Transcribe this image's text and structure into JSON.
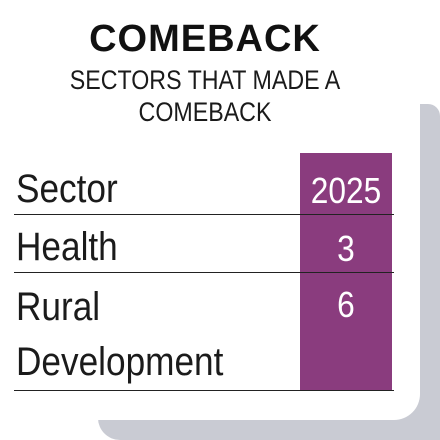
{
  "title": "COMEBACK",
  "subtitle": "SECTORS THAT MADE A COMEBACK",
  "chart_data": {
    "type": "table",
    "columns": [
      "Sector",
      "2025"
    ],
    "rows": [
      {
        "sector": "Health",
        "value": 3
      },
      {
        "sector": "Rural Development",
        "value": 6
      }
    ]
  },
  "display": {
    "header_label": "Sector",
    "header_year": "2025",
    "row1_label": "Health",
    "row1_value": "3",
    "row2_label_line1": "Rural",
    "row2_label_line2": "Development",
    "row2_value": "6"
  },
  "colors": {
    "accent_column": "#8a3c7e",
    "shadow": "#c9cbd3"
  }
}
